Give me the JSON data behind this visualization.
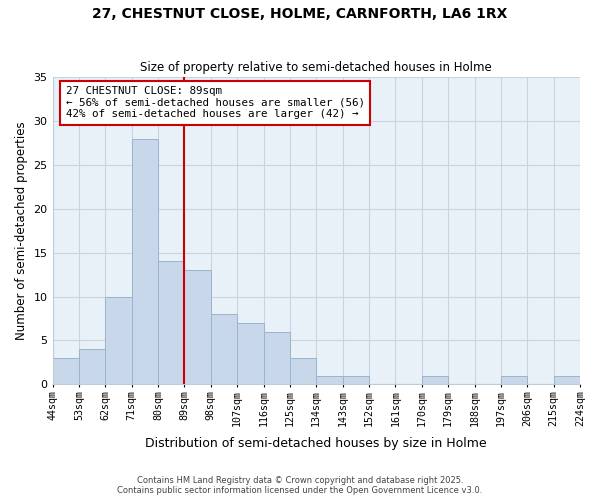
{
  "title1": "27, CHESTNUT CLOSE, HOLME, CARNFORTH, LA6 1RX",
  "title2": "Size of property relative to semi-detached houses in Holme",
  "xlabel": "Distribution of semi-detached houses by size in Holme",
  "ylabel": "Number of semi-detached properties",
  "bin_edges": [
    44,
    53,
    62,
    71,
    80,
    89,
    98,
    107,
    116,
    125,
    134,
    143,
    152,
    161,
    170,
    179,
    188,
    197,
    206,
    215,
    224
  ],
  "counts": [
    3,
    4,
    10,
    28,
    14,
    13,
    8,
    7,
    6,
    3,
    1,
    1,
    0,
    0,
    1,
    0,
    0,
    1,
    0,
    1
  ],
  "bar_color": "#c8d8ea",
  "bar_edge_color": "#9ab4cc",
  "vline_color": "#cc0000",
  "vline_x": 89,
  "annotation_title": "27 CHESTNUT CLOSE: 89sqm",
  "annotation_line1": "← 56% of semi-detached houses are smaller (56)",
  "annotation_line2": "42% of semi-detached houses are larger (42) →",
  "annotation_box_color": "#cc0000",
  "ylim": [
    0,
    35
  ],
  "yticks": [
    0,
    5,
    10,
    15,
    20,
    25,
    30,
    35
  ],
  "tick_labels": [
    "44sqm",
    "53sqm",
    "62sqm",
    "71sqm",
    "80sqm",
    "89sqm",
    "98sqm",
    "107sqm",
    "116sqm",
    "125sqm",
    "134sqm",
    "143sqm",
    "152sqm",
    "161sqm",
    "170sqm",
    "179sqm",
    "188sqm",
    "197sqm",
    "206sqm",
    "215sqm",
    "224sqm"
  ],
  "footer1": "Contains HM Land Registry data © Crown copyright and database right 2025.",
  "footer2": "Contains public sector information licensed under the Open Government Licence v3.0.",
  "fig_bg_color": "#ffffff",
  "plot_bg_color": "#e8f0f8",
  "grid_color": "#c8d4e0"
}
